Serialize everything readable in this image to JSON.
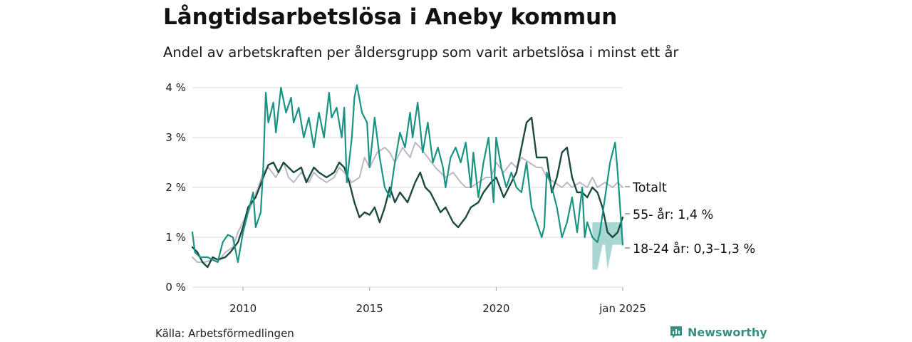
{
  "title": "Långtidsarbetslösa i Aneby kommun",
  "subtitle": "Andel av arbetskraften per åldersgrupp som varit arbetslösa i minst ett år",
  "source": "Källa: Arbetsförmedlingen",
  "brand": "Newsworthy",
  "colors": {
    "totalt": "#bdb7c8",
    "age55": "#1d4a40",
    "age1824": "#1a9383",
    "band": "#9fd4cc",
    "grid": "#d9d9d9",
    "brand": "#3a8f84"
  },
  "chart_data": {
    "type": "line",
    "title": "Långtidsarbetslösa i Aneby kommun",
    "subtitle": "Andel av arbetskraften per åldersgrupp som varit arbetslösa i minst ett år",
    "x_range": [
      2008.0,
      2025.0
    ],
    "ylim": [
      0,
      4
    ],
    "yticks": [
      0,
      1,
      2,
      3,
      4
    ],
    "ytick_labels": [
      "0 %",
      "1 %",
      "2 %",
      "3 %",
      "4 %"
    ],
    "xticks": [
      2010,
      2015,
      2020,
      2025
    ],
    "xtick_labels": [
      "2010",
      "2015",
      "2020",
      "jan 2025"
    ],
    "grid": true,
    "series": [
      {
        "name": "Totalt",
        "label": "Totalt",
        "color": "#bdb7c8",
        "points": [
          [
            2008.0,
            0.6
          ],
          [
            2008.2,
            0.5
          ],
          [
            2008.5,
            0.5
          ],
          [
            2008.8,
            0.55
          ],
          [
            2009.0,
            0.5
          ],
          [
            2009.3,
            0.7
          ],
          [
            2009.6,
            0.8
          ],
          [
            2009.8,
            1.1
          ],
          [
            2010.0,
            1.3
          ],
          [
            2010.3,
            1.6
          ],
          [
            2010.6,
            2.0
          ],
          [
            2010.8,
            2.3
          ],
          [
            2011.0,
            2.4
          ],
          [
            2011.3,
            2.2
          ],
          [
            2011.6,
            2.5
          ],
          [
            2011.8,
            2.2
          ],
          [
            2012.0,
            2.1
          ],
          [
            2012.3,
            2.3
          ],
          [
            2012.6,
            2.1
          ],
          [
            2012.8,
            2.3
          ],
          [
            2013.0,
            2.2
          ],
          [
            2013.3,
            2.1
          ],
          [
            2013.6,
            2.2
          ],
          [
            2013.8,
            2.4
          ],
          [
            2014.0,
            2.3
          ],
          [
            2014.3,
            2.1
          ],
          [
            2014.6,
            2.2
          ],
          [
            2014.8,
            2.6
          ],
          [
            2015.0,
            2.4
          ],
          [
            2015.3,
            2.7
          ],
          [
            2015.6,
            2.8
          ],
          [
            2015.8,
            2.7
          ],
          [
            2016.0,
            2.5
          ],
          [
            2016.3,
            2.8
          ],
          [
            2016.6,
            2.6
          ],
          [
            2016.8,
            2.9
          ],
          [
            2017.0,
            2.8
          ],
          [
            2017.3,
            2.6
          ],
          [
            2017.6,
            2.4
          ],
          [
            2017.8,
            2.3
          ],
          [
            2018.0,
            2.2
          ],
          [
            2018.3,
            2.3
          ],
          [
            2018.6,
            2.1
          ],
          [
            2018.8,
            2.0
          ],
          [
            2019.0,
            2.0
          ],
          [
            2019.3,
            2.1
          ],
          [
            2019.6,
            2.2
          ],
          [
            2019.8,
            2.2
          ],
          [
            2020.0,
            2.5
          ],
          [
            2020.3,
            2.3
          ],
          [
            2020.6,
            2.5
          ],
          [
            2020.8,
            2.4
          ],
          [
            2021.0,
            2.6
          ],
          [
            2021.3,
            2.5
          ],
          [
            2021.6,
            2.4
          ],
          [
            2021.8,
            2.4
          ],
          [
            2022.0,
            2.2
          ],
          [
            2022.3,
            2.1
          ],
          [
            2022.6,
            2.0
          ],
          [
            2022.8,
            2.1
          ],
          [
            2023.0,
            2.0
          ],
          [
            2023.3,
            2.1
          ],
          [
            2023.6,
            2.0
          ],
          [
            2023.8,
            2.2
          ],
          [
            2024.0,
            2.0
          ],
          [
            2024.3,
            2.1
          ],
          [
            2024.6,
            2.0
          ],
          [
            2024.8,
            2.1
          ],
          [
            2025.0,
            2.0
          ]
        ]
      },
      {
        "name": "55- år",
        "label": "55- år: 1,4 %",
        "color": "#1d4a40",
        "points": [
          [
            2008.0,
            0.8
          ],
          [
            2008.2,
            0.7
          ],
          [
            2008.4,
            0.5
          ],
          [
            2008.6,
            0.4
          ],
          [
            2008.8,
            0.6
          ],
          [
            2009.0,
            0.55
          ],
          [
            2009.3,
            0.6
          ],
          [
            2009.5,
            0.7
          ],
          [
            2009.8,
            0.9
          ],
          [
            2010.0,
            1.2
          ],
          [
            2010.2,
            1.6
          ],
          [
            2010.5,
            1.8
          ],
          [
            2010.8,
            2.2
          ],
          [
            2011.0,
            2.45
          ],
          [
            2011.2,
            2.5
          ],
          [
            2011.4,
            2.3
          ],
          [
            2011.6,
            2.5
          ],
          [
            2011.8,
            2.4
          ],
          [
            2012.0,
            2.3
          ],
          [
            2012.3,
            2.4
          ],
          [
            2012.5,
            2.1
          ],
          [
            2012.8,
            2.4
          ],
          [
            2013.0,
            2.3
          ],
          [
            2013.3,
            2.2
          ],
          [
            2013.6,
            2.3
          ],
          [
            2013.8,
            2.5
          ],
          [
            2014.0,
            2.4
          ],
          [
            2014.2,
            2.1
          ],
          [
            2014.4,
            1.7
          ],
          [
            2014.6,
            1.4
          ],
          [
            2014.8,
            1.5
          ],
          [
            2015.0,
            1.45
          ],
          [
            2015.2,
            1.6
          ],
          [
            2015.4,
            1.3
          ],
          [
            2015.6,
            1.6
          ],
          [
            2015.8,
            2.0
          ],
          [
            2016.0,
            1.7
          ],
          [
            2016.2,
            1.9
          ],
          [
            2016.5,
            1.7
          ],
          [
            2016.8,
            2.1
          ],
          [
            2017.0,
            2.3
          ],
          [
            2017.2,
            2.0
          ],
          [
            2017.4,
            1.9
          ],
          [
            2017.6,
            1.7
          ],
          [
            2017.8,
            1.5
          ],
          [
            2018.0,
            1.6
          ],
          [
            2018.3,
            1.3
          ],
          [
            2018.5,
            1.2
          ],
          [
            2018.8,
            1.4
          ],
          [
            2019.0,
            1.6
          ],
          [
            2019.3,
            1.7
          ],
          [
            2019.5,
            1.9
          ],
          [
            2019.8,
            2.1
          ],
          [
            2020.0,
            2.2
          ],
          [
            2020.3,
            1.8
          ],
          [
            2020.5,
            2.0
          ],
          [
            2020.8,
            2.3
          ],
          [
            2021.0,
            2.8
          ],
          [
            2021.2,
            3.3
          ],
          [
            2021.4,
            3.4
          ],
          [
            2021.6,
            2.6
          ],
          [
            2021.8,
            2.6
          ],
          [
            2022.0,
            2.6
          ],
          [
            2022.2,
            1.9
          ],
          [
            2022.4,
            2.2
          ],
          [
            2022.6,
            2.7
          ],
          [
            2022.8,
            2.8
          ],
          [
            2023.0,
            2.2
          ],
          [
            2023.2,
            1.9
          ],
          [
            2023.4,
            1.9
          ],
          [
            2023.6,
            1.8
          ],
          [
            2023.8,
            2.0
          ],
          [
            2024.0,
            1.9
          ],
          [
            2024.2,
            1.6
          ],
          [
            2024.4,
            1.1
          ],
          [
            2024.6,
            1.0
          ],
          [
            2024.8,
            1.1
          ],
          [
            2025.0,
            1.4
          ]
        ]
      },
      {
        "name": "18-24 år",
        "label": "18-24 år: 0,3–1,3 %",
        "color": "#1a9383",
        "band_label": "0,3–1,3 %",
        "band": [
          [
            2023.8,
            0.35,
            1.3
          ],
          [
            2024.0,
            0.35,
            1.3
          ],
          [
            2024.2,
            0.85,
            1.3
          ],
          [
            2024.3,
            0.85,
            1.3
          ],
          [
            2024.4,
            0.35,
            1.3
          ],
          [
            2024.6,
            0.85,
            1.3
          ],
          [
            2025.0,
            0.85,
            1.3
          ]
        ],
        "points": [
          [
            2008.0,
            1.1
          ],
          [
            2008.1,
            0.7
          ],
          [
            2008.3,
            0.6
          ],
          [
            2008.6,
            0.6
          ],
          [
            2009.0,
            0.5
          ],
          [
            2009.2,
            0.9
          ],
          [
            2009.4,
            1.05
          ],
          [
            2009.6,
            1.0
          ],
          [
            2009.8,
            0.5
          ],
          [
            2010.0,
            1.1
          ],
          [
            2010.2,
            1.5
          ],
          [
            2010.4,
            1.9
          ],
          [
            2010.5,
            1.2
          ],
          [
            2010.7,
            1.5
          ],
          [
            2010.8,
            2.4
          ],
          [
            2010.9,
            3.9
          ],
          [
            2011.0,
            3.3
          ],
          [
            2011.2,
            3.7
          ],
          [
            2011.3,
            3.1
          ],
          [
            2011.5,
            4.0
          ],
          [
            2011.7,
            3.5
          ],
          [
            2011.9,
            3.8
          ],
          [
            2012.0,
            3.3
          ],
          [
            2012.2,
            3.6
          ],
          [
            2012.4,
            3.0
          ],
          [
            2012.6,
            3.4
          ],
          [
            2012.8,
            2.8
          ],
          [
            2013.0,
            3.5
          ],
          [
            2013.2,
            3.0
          ],
          [
            2013.4,
            3.9
          ],
          [
            2013.5,
            3.4
          ],
          [
            2013.7,
            3.6
          ],
          [
            2013.9,
            3.0
          ],
          [
            2014.0,
            3.6
          ],
          [
            2014.1,
            2.1
          ],
          [
            2014.3,
            3.0
          ],
          [
            2014.4,
            3.8
          ],
          [
            2014.5,
            4.05
          ],
          [
            2014.7,
            3.5
          ],
          [
            2014.9,
            3.3
          ],
          [
            2015.0,
            2.4
          ],
          [
            2015.2,
            3.4
          ],
          [
            2015.4,
            2.6
          ],
          [
            2015.6,
            2.0
          ],
          [
            2015.8,
            1.8
          ],
          [
            2016.0,
            2.5
          ],
          [
            2016.2,
            3.1
          ],
          [
            2016.4,
            2.8
          ],
          [
            2016.6,
            3.5
          ],
          [
            2016.7,
            3.0
          ],
          [
            2016.9,
            3.7
          ],
          [
            2017.1,
            2.7
          ],
          [
            2017.3,
            3.3
          ],
          [
            2017.5,
            2.5
          ],
          [
            2017.7,
            2.8
          ],
          [
            2017.9,
            2.4
          ],
          [
            2018.0,
            2.0
          ],
          [
            2018.2,
            2.6
          ],
          [
            2018.4,
            2.8
          ],
          [
            2018.6,
            2.5
          ],
          [
            2018.8,
            2.9
          ],
          [
            2019.0,
            2.0
          ],
          [
            2019.1,
            2.7
          ],
          [
            2019.3,
            1.8
          ],
          [
            2019.5,
            2.5
          ],
          [
            2019.7,
            3.0
          ],
          [
            2019.9,
            1.7
          ],
          [
            2020.0,
            3.0
          ],
          [
            2020.2,
            2.4
          ],
          [
            2020.4,
            2.0
          ],
          [
            2020.6,
            2.3
          ],
          [
            2020.8,
            2.0
          ],
          [
            2021.0,
            1.9
          ],
          [
            2021.2,
            2.5
          ],
          [
            2021.4,
            1.6
          ],
          [
            2021.6,
            1.3
          ],
          [
            2021.8,
            1.0
          ],
          [
            2021.9,
            1.2
          ],
          [
            2022.0,
            2.3
          ],
          [
            2022.2,
            2.0
          ],
          [
            2022.4,
            1.6
          ],
          [
            2022.6,
            1.0
          ],
          [
            2022.8,
            1.3
          ],
          [
            2023.0,
            1.8
          ],
          [
            2023.2,
            1.1
          ],
          [
            2023.4,
            2.0
          ],
          [
            2023.5,
            1.0
          ],
          [
            2023.6,
            1.3
          ],
          [
            2023.8,
            1.0
          ],
          [
            2024.0,
            0.9
          ],
          [
            2024.1,
            1.1
          ],
          [
            2024.3,
            1.8
          ],
          [
            2024.5,
            2.5
          ],
          [
            2024.7,
            2.9
          ],
          [
            2024.8,
            2.3
          ],
          [
            2025.0,
            0.85
          ]
        ]
      }
    ]
  }
}
